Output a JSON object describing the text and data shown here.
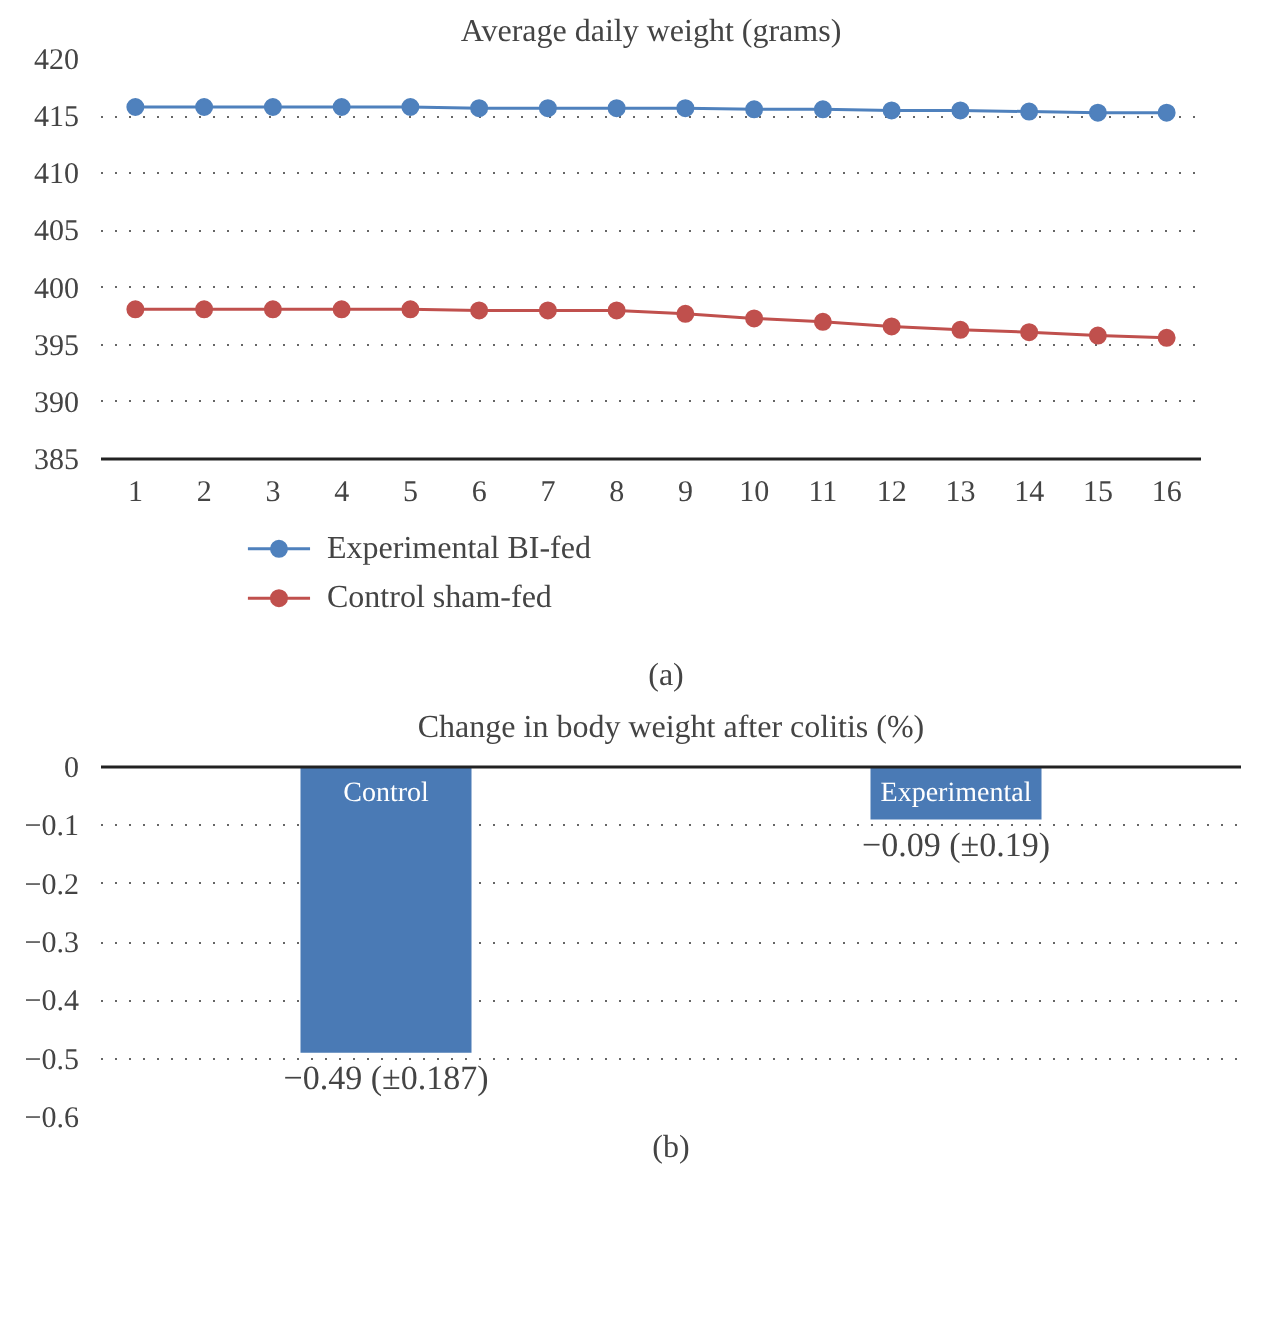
{
  "chart_data": [
    {
      "type": "line",
      "title": "Average daily weight (grams)",
      "x": [
        1,
        2,
        3,
        4,
        5,
        6,
        7,
        8,
        9,
        10,
        11,
        12,
        13,
        14,
        15,
        16
      ],
      "xlim": [
        0.5,
        16.5
      ],
      "xticks": [
        1,
        2,
        3,
        4,
        5,
        6,
        7,
        8,
        9,
        10,
        11,
        12,
        13,
        14,
        15,
        16
      ],
      "ylim": [
        385,
        420
      ],
      "yticks": [
        385,
        390,
        395,
        400,
        405,
        410,
        415,
        420
      ],
      "grid": "y",
      "legend": "bottom",
      "marker": "circle",
      "line_style": "solid",
      "series": [
        {
          "name": "Experimental BI-fed",
          "color": "#4f81bd",
          "values": [
            415.8,
            415.8,
            415.8,
            415.8,
            415.8,
            415.7,
            415.7,
            415.7,
            415.7,
            415.6,
            415.6,
            415.5,
            415.5,
            415.4,
            415.3,
            415.3
          ]
        },
        {
          "name": "Control sham-fed",
          "color": "#c0504d",
          "values": [
            398.1,
            398.1,
            398.1,
            398.1,
            398.1,
            398.0,
            398.0,
            398.0,
            397.7,
            397.3,
            397.0,
            396.6,
            396.3,
            396.1,
            395.8,
            395.6
          ]
        }
      ],
      "annotations": [
        "(a)"
      ]
    },
    {
      "type": "bar",
      "title": "Change in body weight after colitis (%)",
      "categories": [
        "Control",
        "Experimental"
      ],
      "values": [
        -0.49,
        -0.09
      ],
      "color": "#4a7ab5",
      "value_labels": [
        "−0.49 (±0.187)",
        "−0.09 (±0.19)"
      ],
      "ylim": [
        -0.6,
        0
      ],
      "yticks": [
        {
          "value": 0,
          "label": "0"
        },
        {
          "value": -0.1,
          "label": "−0.1"
        },
        {
          "value": -0.2,
          "label": "−0.2"
        },
        {
          "value": -0.3,
          "label": "−0.3"
        },
        {
          "value": -0.4,
          "label": "−0.4"
        },
        {
          "value": -0.5,
          "label": "−0.5"
        },
        {
          "value": -0.6,
          "label": "−0.6"
        }
      ],
      "grid": "y",
      "tick_labels": "y",
      "annotations": [
        "(b)"
      ]
    }
  ]
}
